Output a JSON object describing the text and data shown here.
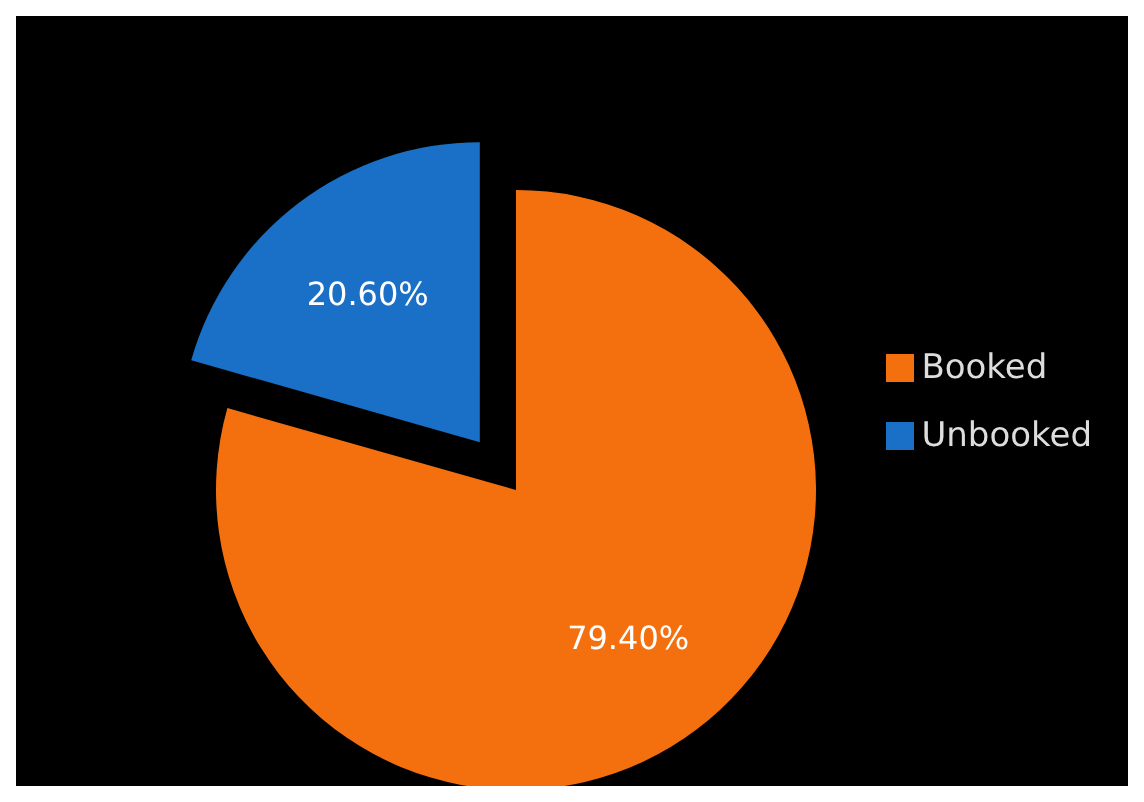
{
  "chart_data": {
    "type": "pie",
    "categories": [
      "Booked",
      "Unbooked"
    ],
    "values": [
      79.4,
      20.6
    ],
    "colors": [
      "#f4700f",
      "#1a6fc6"
    ],
    "value_labels": [
      "79.40%",
      "20.60%"
    ],
    "legend": "right"
  }
}
